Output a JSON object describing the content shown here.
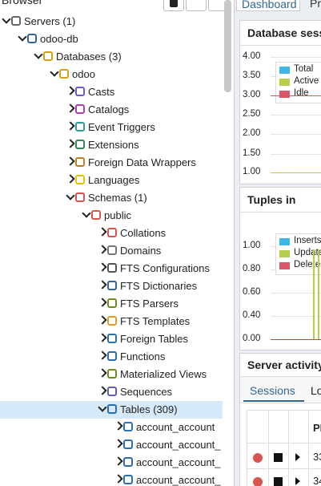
{
  "header": {
    "title": "Browser"
  },
  "tree": {
    "nodes": [
      "Servers (1)",
      "odoo-db",
      "Databases (3)",
      "odoo",
      "Casts",
      "Catalogs",
      "Event Triggers",
      "Extensions",
      "Foreign Data Wrappers",
      "Languages",
      "Schemas (1)",
      "public",
      "Collations",
      "Domains",
      "FTS Configurations",
      "FTS Dictionaries",
      "FTS Parsers",
      "FTS Templates",
      "Foreign Tables",
      "Functions",
      "Materialized Views",
      "Sequences",
      "Tables (309)",
      "account_account",
      "account_account_",
      "account_account_",
      "account_account_"
    ]
  },
  "tabs": [
    "Dashboard",
    "Pr"
  ],
  "panels": [
    {
      "title": "Database sess",
      "yticks": [
        "4.00",
        "3.50",
        "3.00",
        "2.50",
        "2.00",
        "1.50",
        "1.00"
      ],
      "legend": [
        "Total",
        "Active",
        "Idle"
      ]
    },
    {
      "title": "Tuples in",
      "yticks": [
        "1.00",
        "0.80",
        "0.60",
        "0.40",
        "0.00"
      ],
      "legend": [
        "Inserts",
        "Update",
        "Deletes"
      ]
    }
  ],
  "activity": {
    "title": "Server activity",
    "tabs": [
      "Sessions",
      "Lo"
    ],
    "header": "PI",
    "rows": [
      "33",
      "34"
    ]
  }
}
